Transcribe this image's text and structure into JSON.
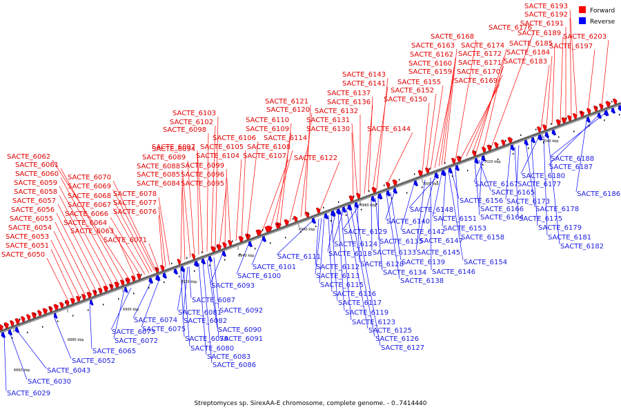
{
  "caption": "Streptomyces sp. SirexAA-E chromosome, complete genome. - 0..7414440",
  "legend": [
    {
      "label": "Forward",
      "color": "#ff0000"
    },
    {
      "label": "Reverse",
      "color": "#0000ff"
    }
  ],
  "colors": {
    "forward": "#ff0000",
    "reverse": "#0000ff",
    "forward_text": "#e00000",
    "reverse_text": "#1a1ae0",
    "axis": "#808080"
  },
  "ticks": [
    "6860 kbp",
    "6880 kbp",
    "6900 kbp",
    "6920 kbp",
    "6940 kbp",
    "6960 kbp",
    "6980 kbp",
    "7000 kbp",
    "7020 kbp",
    "7040 kbp"
  ],
  "forward_genes": [
    "SACTE_6050",
    "SACTE_6051",
    "SACTE_6053",
    "SACTE_6054",
    "SACTE_6055",
    "SACTE_6056",
    "SACTE_6057",
    "SACTE_6058",
    "SACTE_6059",
    "SACTE_6060",
    "SACTE_6061",
    "SACTE_6062",
    "SACTE_6063",
    "SACTE_6064",
    "SACTE_6066",
    "SACTE_6067",
    "SACTE_6068",
    "SACTE_6069",
    "SACTE_6070",
    "SACTE_6071",
    "SACTE_6076",
    "SACTE_6077",
    "SACTE_6078",
    "SACTE_6084",
    "SACTE_6085",
    "SACTE_6088",
    "SACTE_6089",
    "SACTE_6094",
    "SACTE_6097",
    "SACTE_6098",
    "SACTE_6102",
    "SACTE_6103",
    "SACTE_6095",
    "SACTE_6096",
    "SACTE_6099",
    "SACTE_6104",
    "SACTE_6105",
    "SACTE_6106",
    "SACTE_6107",
    "SACTE_6108",
    "SACTE_6109",
    "SACTE_6110",
    "SACTE_6114",
    "SACTE_6120",
    "SACTE_6121",
    "SACTE_6122",
    "SACTE_6130",
    "SACTE_6131",
    "SACTE_6132",
    "SACTE_6136",
    "SACTE_6137",
    "SACTE_6141",
    "SACTE_6143",
    "SACTE_6144",
    "SACTE_6150",
    "SACTE_6152",
    "SACTE_6155",
    "SACTE_6159",
    "SACTE_6160",
    "SACTE_6162",
    "SACTE_6163",
    "SACTE_6168",
    "SACTE_6169",
    "SACTE_6170",
    "SACTE_6171",
    "SACTE_6172",
    "SACTE_6174",
    "SACTE_6176",
    "SACTE_6183",
    "SACTE_6184",
    "SACTE_6185",
    "SACTE_6189",
    "SACTE_6191",
    "SACTE_6192",
    "SACTE_6193",
    "SACTE_6197",
    "SACTE_6203"
  ],
  "reverse_genes": [
    "SACTE_6029",
    "SACTE_6030",
    "SACTE_6043",
    "SACTE_6052",
    "SACTE_6065",
    "SACTE_6072",
    "SACTE_6073",
    "SACTE_6074",
    "SACTE_6075",
    "SACTE_6079",
    "SACTE_6080",
    "SACTE_6081",
    "SACTE_6082",
    "SACTE_6083",
    "SACTE_6086",
    "SACTE_6087",
    "SACTE_6090",
    "SACTE_6091",
    "SACTE_6092",
    "SACTE_6093",
    "SACTE_6100",
    "SACTE_6101",
    "SACTE_6111",
    "SACTE_6112",
    "SACTE_6113",
    "SACTE_6115",
    "SACTE_6116",
    "SACTE_6117",
    "SACTE_6118",
    "SACTE_6119",
    "SACTE_6123",
    "SACTE_6124",
    "SACTE_6125",
    "SACTE_6126",
    "SACTE_6127",
    "SACTE_6128",
    "SACTE_6129",
    "SACTE_6133",
    "SACTE_6134",
    "SACTE_6135",
    "SACTE_6138",
    "SACTE_6139",
    "SACTE_6140",
    "SACTE_6142",
    "SACTE_6145",
    "SACTE_6146",
    "SACTE_6147",
    "SACTE_6148",
    "SACTE_6151",
    "SACTE_6153",
    "SACTE_6154",
    "SACTE_6156",
    "SACTE_6158",
    "SACTE_6164",
    "SACTE_6165",
    "SACTE_6166",
    "SACTE_6167",
    "SACTE_6173",
    "SACTE_6175",
    "SACTE_6177",
    "SACTE_6178",
    "SACTE_6179",
    "SACTE_6180",
    "SACTE_6181",
    "SACTE_6182",
    "SACTE_6186",
    "SACTE_6187",
    "SACTE_6188"
  ]
}
